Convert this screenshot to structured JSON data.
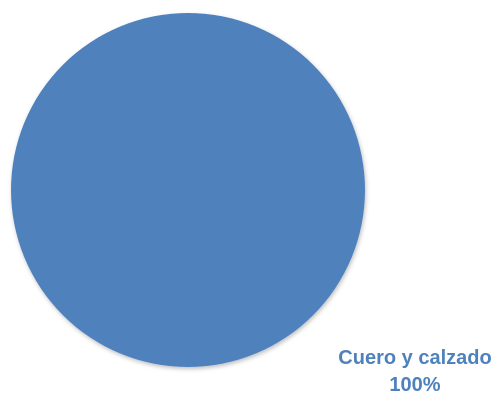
{
  "chart_data": {
    "type": "pie",
    "categories": [
      "Cuero y calzado"
    ],
    "values": [
      100
    ],
    "data_labels": [
      {
        "category": "Cuero y calzado",
        "value": "100%"
      }
    ],
    "colors": [
      "#4f81bd"
    ],
    "label_color": "#4f81bd",
    "legend": "none"
  }
}
